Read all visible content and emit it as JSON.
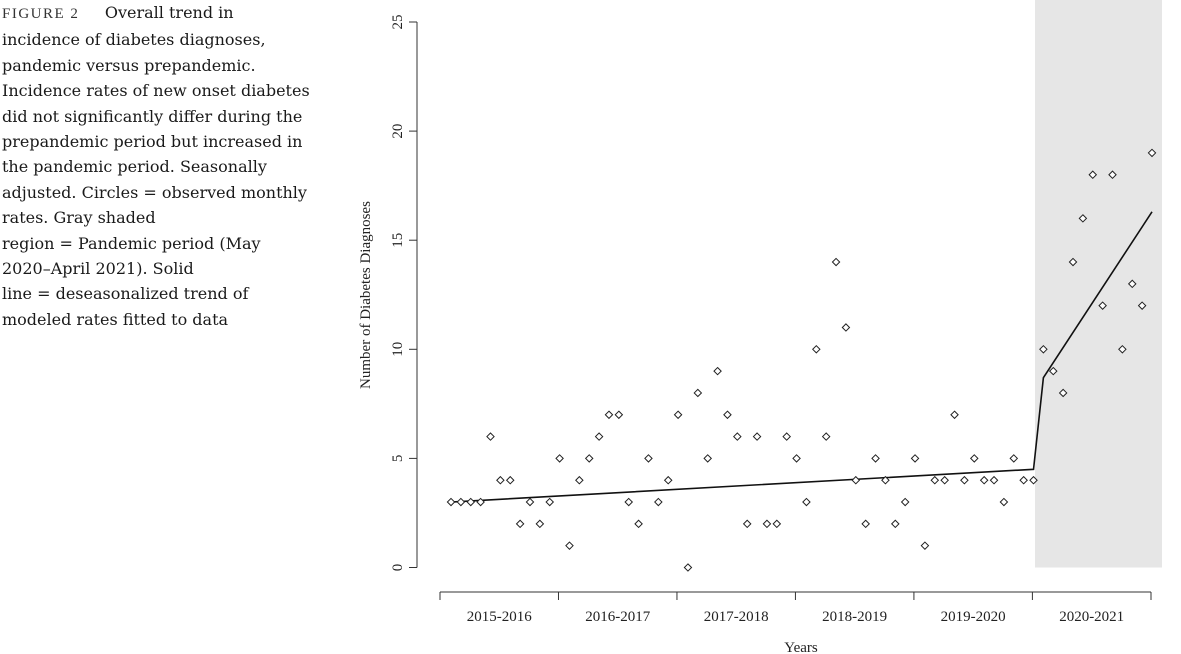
{
  "caption": {
    "label": "FIGURE 2",
    "lines": [
      "Overall trend in",
      "incidence of diabetes diagnoses,",
      "pandemic versus prepandemic.",
      "Incidence rates of new onset diabetes",
      "did not significantly differ during the",
      "prepandemic period but increased in",
      "the pandemic period. Seasonally",
      "adjusted. Circles = observed monthly",
      "rates. Gray shaded",
      "region = Pandemic period (May",
      "2020–April 2021). Solid",
      "line = deseasonalized trend of",
      "modeled rates fitted to data"
    ]
  },
  "chart_data": {
    "type": "scatter",
    "xlabel": "Years",
    "ylabel": "Number of Diabetes Diagnoses",
    "ylim": [
      0,
      25
    ],
    "yticks": [
      0,
      5,
      10,
      15,
      20,
      25
    ],
    "categories": [
      "2015-2016",
      "2016-2017",
      "2017-2018",
      "2018-2019",
      "2019-2020",
      "2020-2021"
    ],
    "shaded_region_color": "#e6e6e6",
    "series": [
      {
        "type": "scatter",
        "x": [
          1,
          2,
          3,
          4,
          5,
          6,
          7,
          8,
          9,
          10,
          11,
          12,
          13,
          14,
          15,
          16,
          17,
          18,
          19,
          20,
          21,
          22,
          23,
          24,
          25,
          26,
          27,
          28,
          29,
          30,
          31,
          32,
          33,
          34,
          35,
          36,
          37,
          38,
          39,
          40,
          41,
          42,
          43,
          44,
          45,
          46,
          47,
          48,
          49,
          50,
          51,
          52,
          53,
          54,
          55,
          56,
          57,
          58,
          59,
          60,
          61,
          62,
          63,
          64,
          65,
          66,
          67,
          68,
          69,
          70,
          71,
          72
        ],
        "values": [
          3,
          3,
          3,
          3,
          6,
          4,
          4,
          2,
          3,
          2,
          3,
          5,
          1,
          4,
          5,
          6,
          7,
          7,
          3,
          2,
          5,
          3,
          4,
          7,
          0,
          8,
          5,
          9,
          7,
          6,
          2,
          6,
          2,
          2,
          6,
          5,
          3,
          10,
          6,
          14,
          11,
          4,
          2,
          5,
          4,
          2,
          3,
          5,
          1,
          4,
          4,
          7,
          4,
          5,
          4,
          4,
          3,
          5,
          4,
          4,
          10,
          9,
          8,
          14,
          16,
          18,
          12,
          18,
          10,
          13,
          12,
          19
        ]
      },
      {
        "type": "line",
        "x": [
          1,
          60,
          61,
          72
        ],
        "values": [
          3.0,
          4.5,
          8.7,
          16.3
        ]
      }
    ]
  }
}
